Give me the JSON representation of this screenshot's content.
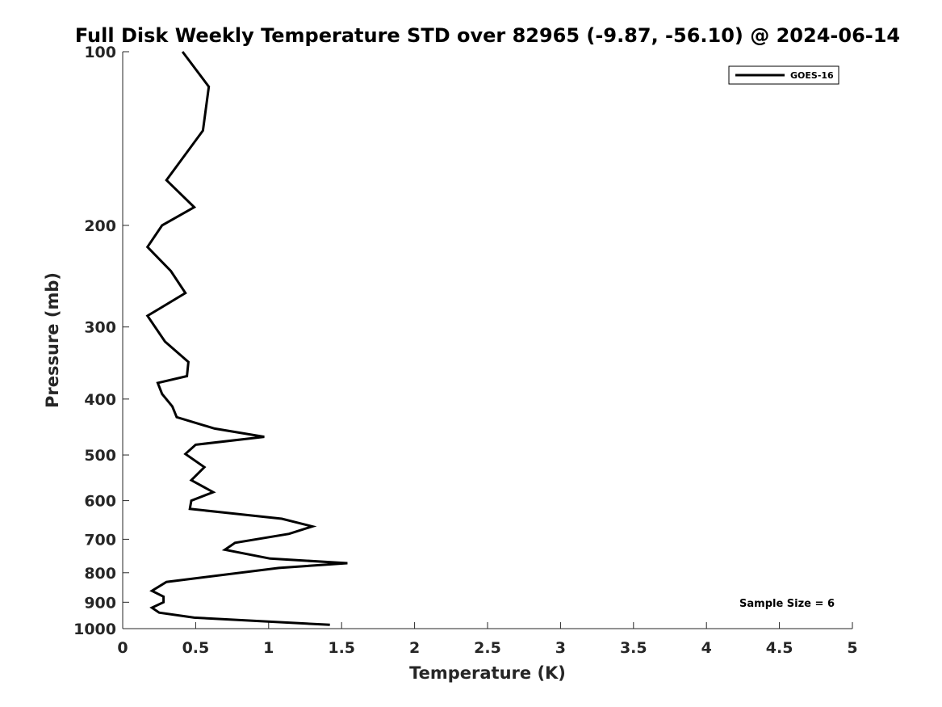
{
  "chart_data": {
    "type": "line",
    "title": "Full Disk Weekly Temperature STD over 82965 (-9.87, -56.10) @ 2024-06-14",
    "xlabel": "Temperature (K)",
    "ylabel": "Pressure (mb)",
    "xlim": [
      0,
      5
    ],
    "ylim": [
      1000,
      100
    ],
    "yscale": "log",
    "y_reversed": true,
    "grid": false,
    "legend_position": "top-right",
    "xticks": [
      0,
      0.5,
      1,
      1.5,
      2,
      2.5,
      3,
      3.5,
      4,
      4.5,
      5
    ],
    "xtick_labels": [
      "0",
      "0.5",
      "1",
      "1.5",
      "2",
      "2.5",
      "3",
      "3.5",
      "4",
      "4.5",
      "5"
    ],
    "yticks": [
      100,
      200,
      300,
      400,
      500,
      600,
      700,
      800,
      900,
      1000
    ],
    "ytick_labels": [
      "100",
      "200",
      "300",
      "400",
      "500",
      "600",
      "700",
      "800",
      "900",
      "1000"
    ],
    "series": [
      {
        "name": "GOES-16",
        "color": "#000000",
        "x": [
          0.41,
          0.59,
          0.55,
          0.3,
          0.49,
          0.27,
          0.17,
          0.33,
          0.43,
          0.17,
          0.29,
          0.45,
          0.44,
          0.24,
          0.27,
          0.34,
          0.37,
          0.63,
          0.97,
          0.5,
          0.43,
          0.56,
          0.47,
          0.62,
          0.47,
          0.46,
          1.09,
          1.3,
          1.14,
          0.77,
          0.7,
          1.01,
          1.54,
          1.07,
          0.3,
          0.2,
          0.28,
          0.28,
          0.2,
          0.25,
          0.49,
          1.42
        ],
        "y": [
          100,
          115,
          137,
          167,
          186,
          200,
          218,
          240,
          262,
          287,
          318,
          345,
          365,
          375,
          392,
          412,
          430,
          450,
          465,
          480,
          498,
          525,
          553,
          580,
          600,
          620,
          645,
          665,
          685,
          710,
          730,
          756,
          770,
          785,
          830,
          860,
          880,
          900,
          920,
          938,
          957,
          985
        ]
      }
    ],
    "annotations": [
      "Sample Size = 6"
    ]
  }
}
